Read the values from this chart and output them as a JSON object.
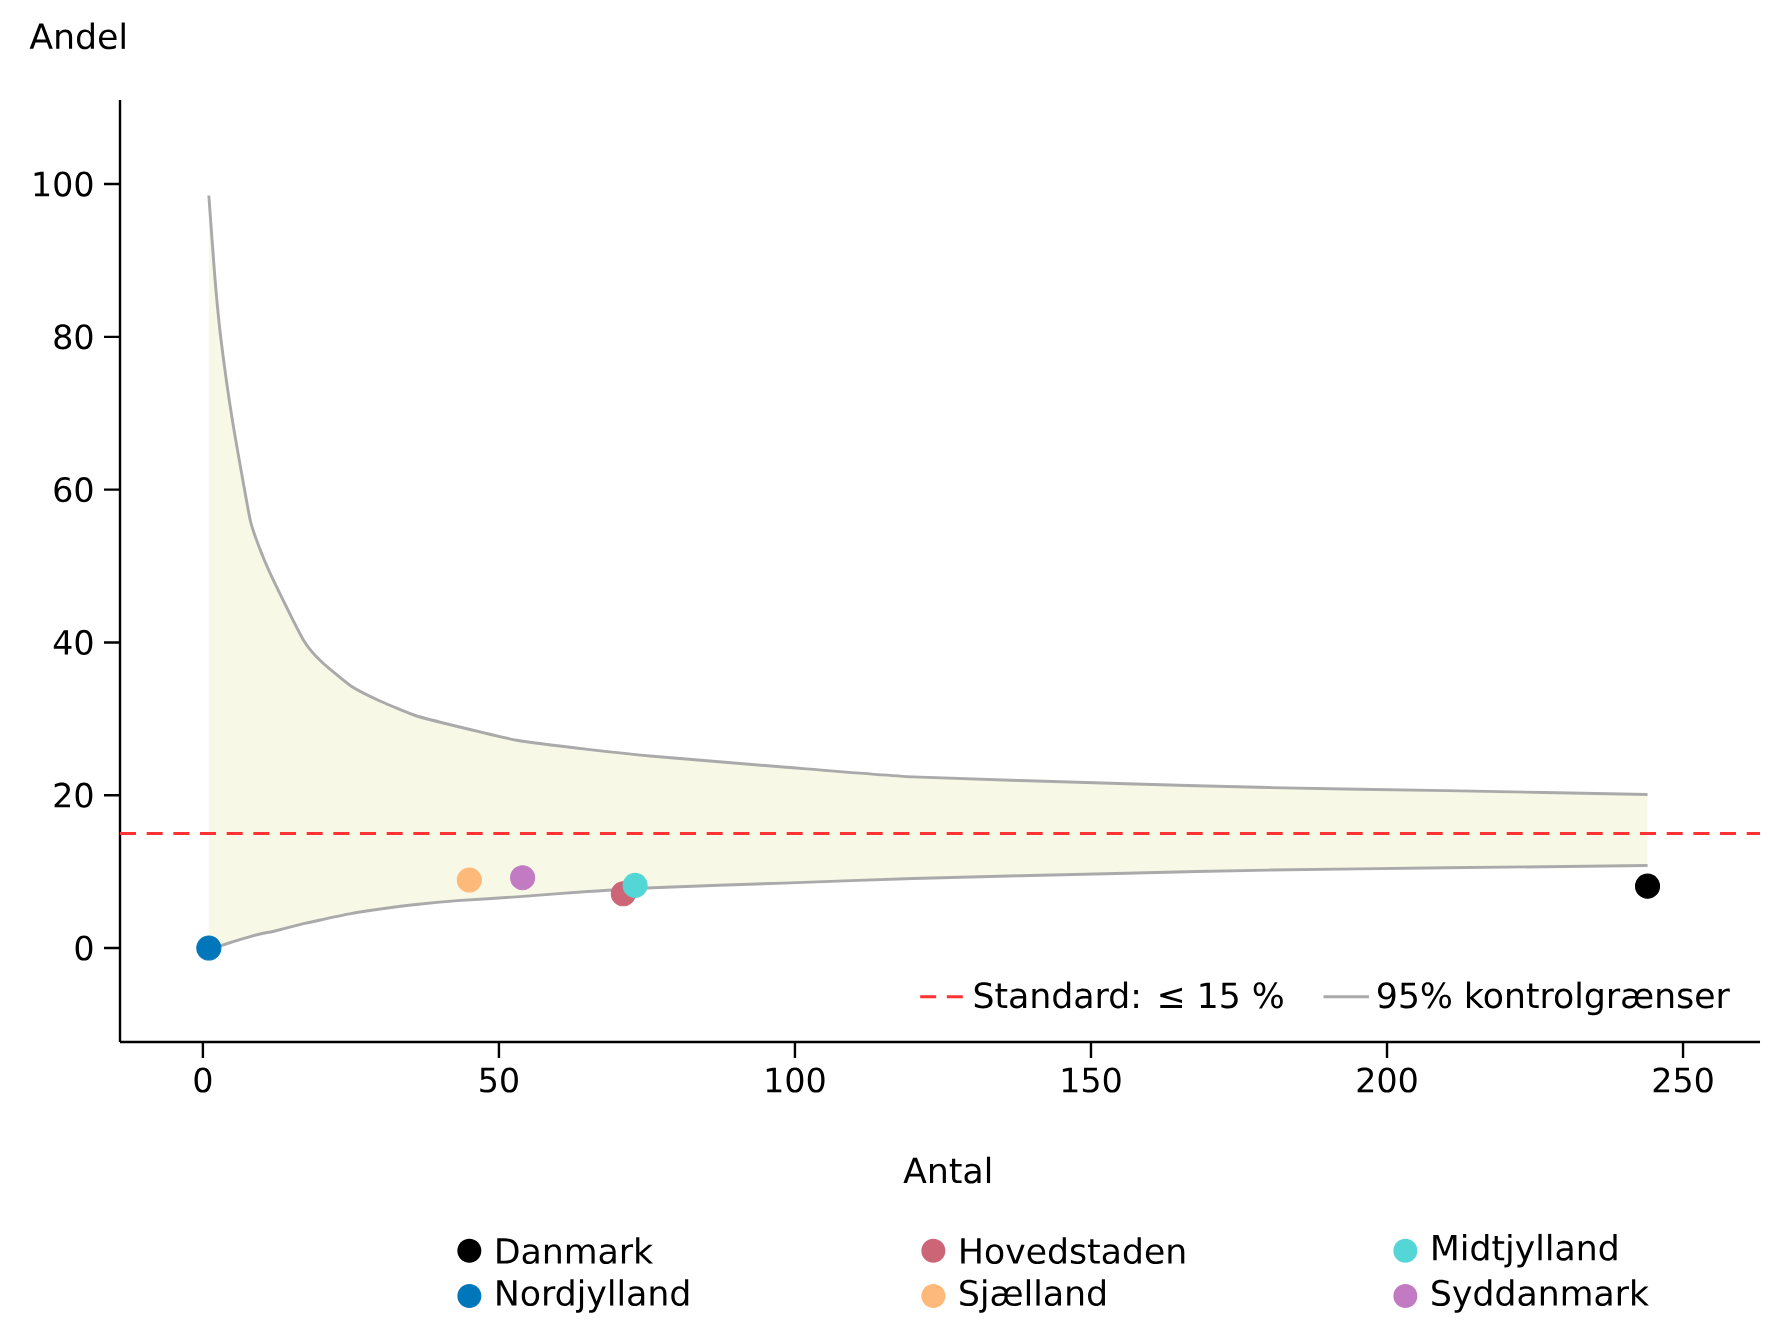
{
  "chart_data": {
    "type": "scatter",
    "xlabel": "Antal",
    "ylabel": "Andel",
    "xlim": [
      -14,
      263
    ],
    "ylim": [
      -12.3,
      111
    ],
    "xticks": [
      0,
      50,
      100,
      150,
      200,
      250
    ],
    "yticks": [
      0,
      20,
      40,
      60,
      80,
      100
    ],
    "marker": "circle",
    "legend": "bottom right",
    "grid": false,
    "ref_lines": [
      {
        "axis": "y",
        "value": 15,
        "label": "Standard: ≤ 15 %",
        "color": "#ff3333",
        "line_style": "dashed"
      }
    ],
    "series": [
      {
        "type": "line",
        "name": "95% kontrolgrænser",
        "marker": "none",
        "color": "#aaaaaa",
        "x": [
          1,
          2,
          3,
          5,
          8,
          10,
          12,
          17,
          20,
          25,
          30,
          36,
          43,
          53,
          65,
          76,
          98,
          120,
          156,
          180,
          210,
          244
        ],
        "values": [
          98.5,
          88,
          80,
          69,
          56,
          51.5,
          48,
          40.3,
          37.5,
          34.3,
          32.3,
          30.4,
          29,
          27.2,
          26,
          25.1,
          23.7,
          22.4,
          21.5,
          21.0,
          20.6,
          20.1
        ],
        "lower": [
          0,
          0.1,
          0.3,
          0.8,
          1.5,
          1.9,
          2.2,
          3.2,
          3.7,
          4.5,
          5.1,
          5.7,
          6.2,
          6.7,
          7.4,
          7.9,
          8.5,
          9.1,
          9.8,
          10.2,
          10.5,
          10.8
        ],
        "upper": [
          98.5,
          88,
          80,
          69,
          56,
          51.5,
          48,
          40.3,
          37.5,
          34.3,
          32.3,
          30.4,
          29,
          27.2,
          26,
          25.1,
          23.7,
          22.4,
          21.5,
          21.0,
          20.6,
          20.1
        ]
      },
      {
        "type": "line",
        "marker": "none",
        "color": "#aaaaaa",
        "x": [
          1,
          2,
          3,
          5,
          8,
          10,
          12,
          17,
          20,
          25,
          30,
          36,
          43,
          53,
          65,
          76,
          98,
          120,
          156,
          180,
          210,
          244
        ],
        "values": [
          0,
          0.1,
          0.3,
          0.8,
          1.5,
          1.9,
          2.2,
          3.2,
          3.7,
          4.5,
          5.1,
          5.7,
          6.2,
          6.7,
          7.4,
          7.9,
          8.5,
          9.1,
          9.8,
          10.2,
          10.5,
          10.8
        ]
      },
      {
        "name": "Danmark",
        "color": "#000000",
        "x": [
          244
        ],
        "values": [
          8.1
        ]
      },
      {
        "name": "Nordjylland",
        "color": "#0077bb",
        "x": [
          1
        ],
        "values": [
          0
        ]
      },
      {
        "name": "Hovedstaden",
        "color": "#cc6677",
        "x": [
          71
        ],
        "values": [
          7.1
        ]
      },
      {
        "name": "Sjælland",
        "color": "#fdb97a",
        "x": [
          45
        ],
        "values": [
          8.9
        ]
      },
      {
        "name": "Midtjylland",
        "color": "#55d6d6",
        "x": [
          73
        ],
        "values": [
          8.2
        ]
      },
      {
        "name": "Syddanmark",
        "color": "#c27bc3",
        "x": [
          54
        ],
        "values": [
          9.2
        ]
      }
    ]
  }
}
